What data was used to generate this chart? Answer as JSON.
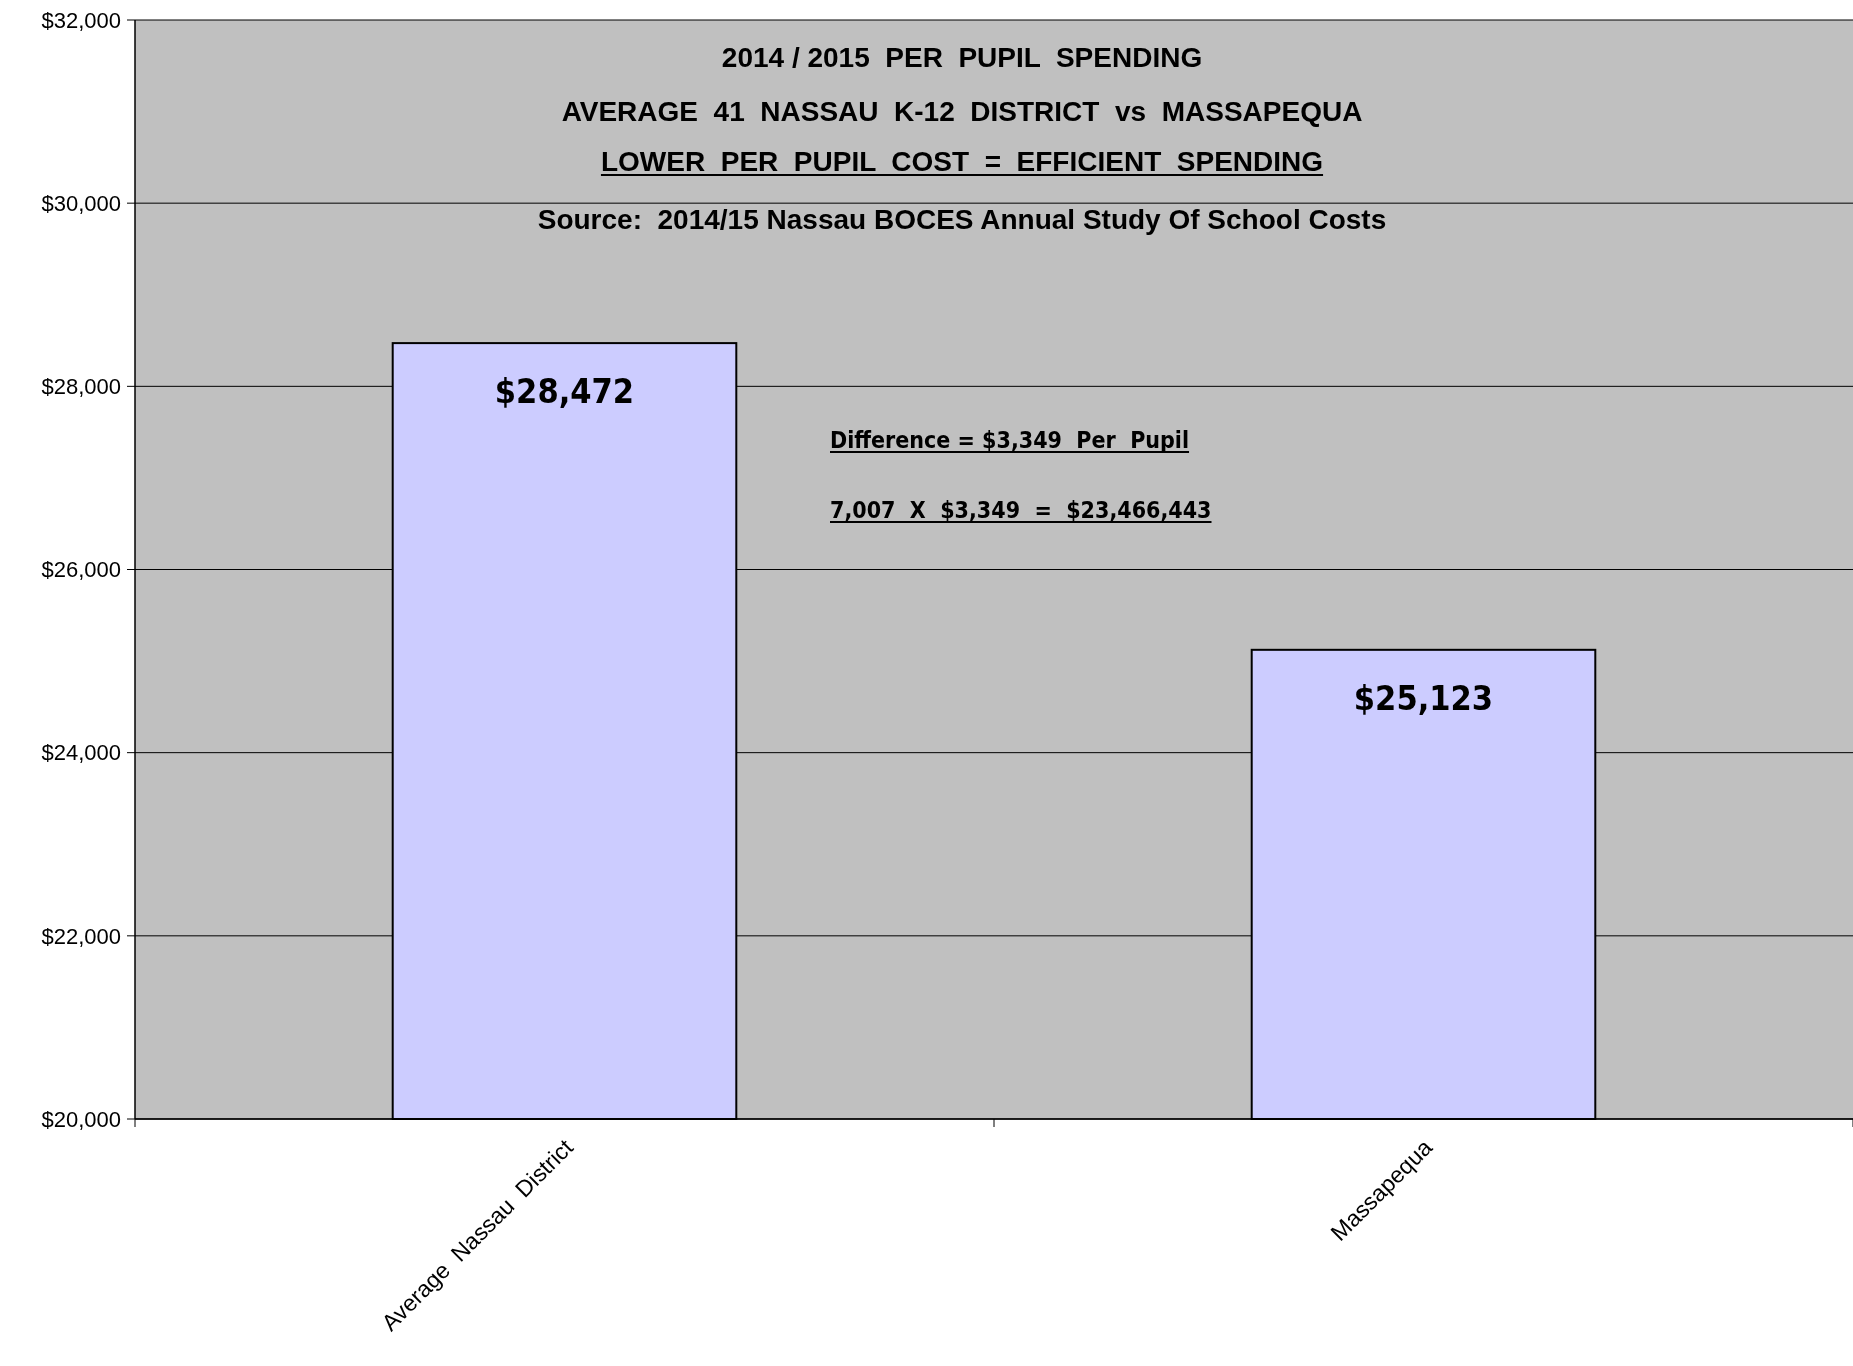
{
  "chart_data": {
    "type": "bar",
    "title": "2014 / 2015  PER  PUPIL  SPENDING",
    "subtitle": "AVERAGE  41  NASSAU  K-12  DISTRICT  vs  MASSAPEQUA",
    "annotations": [
      "LOWER  PER  PUPIL  COST  =  EFFICIENT  SPENDING",
      "Source:  2014/15 Nassau BOCES Annual Study Of School Costs",
      "Difference = $3,349  Per  Pupil",
      "7,007  X  $3,349  =  $23,466,443"
    ],
    "categories": [
      "Average  Nassau  District",
      "Massapequa"
    ],
    "values": [
      28472,
      25123
    ],
    "value_labels": [
      "$28,472",
      "$25,123"
    ],
    "color": "#ccccff",
    "ylim": [
      20000,
      32000
    ],
    "yticks": [
      {
        "value": 20000,
        "label": "$20,000"
      },
      {
        "value": 22000,
        "label": "$22,000"
      },
      {
        "value": 24000,
        "label": "$24,000"
      },
      {
        "value": 26000,
        "label": "$26,000"
      },
      {
        "value": 28000,
        "label": "$28,000"
      },
      {
        "value": 30000,
        "label": "$30,000"
      },
      {
        "value": 32000,
        "label": "$32,000"
      }
    ],
    "grid": "y"
  }
}
